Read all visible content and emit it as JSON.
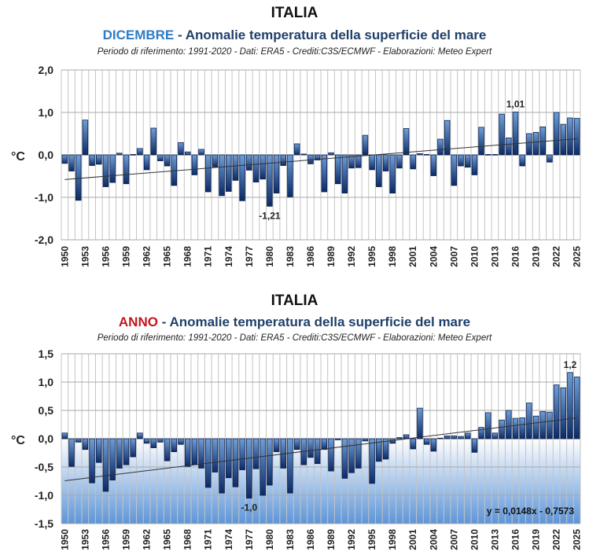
{
  "chart_data": [
    {
      "type": "bar",
      "title": "ITALIA",
      "subtitle_highlight": "DICEMBRE",
      "subtitle_highlight_color": "#2e7cc4",
      "subtitle_rest": " - Anomalie temperatura della superficie del mare",
      "credits": "Periodo di riferimento: 1991-2020 - Dati: ERA5 - Crediti:C3S/ECMWF - Elaborazioni: Meteo Expert",
      "ylabel": "°C",
      "xlabel": "",
      "ylim": [
        -2.0,
        2.0
      ],
      "yticks": [
        2.0,
        1.0,
        0.0,
        -1.0,
        -2.0
      ],
      "ytick_labels": [
        "2,0",
        "1,0",
        "0,0",
        "-1,0",
        "-2,0"
      ],
      "grid": true,
      "background": "white",
      "xtick_labels": [
        "1950",
        "1953",
        "1956",
        "1959",
        "1962",
        "1965",
        "1968",
        "1971",
        "1974",
        "1977",
        "1980",
        "1983",
        "1986",
        "1989",
        "1992",
        "1995",
        "1998",
        "2001",
        "2004",
        "2007",
        "2010",
        "2013",
        "2016",
        "2019",
        "2022",
        "2025"
      ],
      "x": [
        1950,
        1951,
        1952,
        1953,
        1954,
        1955,
        1956,
        1957,
        1958,
        1959,
        1960,
        1961,
        1962,
        1963,
        1964,
        1965,
        1966,
        1967,
        1968,
        1969,
        1970,
        1971,
        1972,
        1973,
        1974,
        1975,
        1976,
        1977,
        1978,
        1979,
        1980,
        1981,
        1982,
        1983,
        1984,
        1985,
        1986,
        1987,
        1988,
        1989,
        1990,
        1991,
        1992,
        1993,
        1994,
        1995,
        1996,
        1997,
        1998,
        1999,
        2000,
        2001,
        2002,
        2003,
        2004,
        2005,
        2006,
        2007,
        2008,
        2009,
        2010,
        2011,
        2012,
        2013,
        2014,
        2015,
        2016,
        2017,
        2018,
        2019,
        2020,
        2021,
        2022,
        2023,
        2024,
        2025
      ],
      "values": [
        -0.2,
        -0.38,
        -1.07,
        0.82,
        -0.25,
        -0.22,
        -0.75,
        -0.65,
        0.04,
        -0.68,
        0.01,
        0.15,
        -0.35,
        0.63,
        -0.14,
        -0.26,
        -0.72,
        0.29,
        0.07,
        -0.47,
        0.13,
        -0.87,
        -0.28,
        -0.96,
        -0.86,
        -0.6,
        -1.08,
        -0.36,
        -0.64,
        -0.57,
        -1.21,
        -0.9,
        -0.25,
        -0.99,
        0.26,
        0.02,
        -0.21,
        -0.12,
        -0.87,
        0.05,
        -0.68,
        -0.9,
        -0.31,
        -0.3,
        0.46,
        -0.35,
        -0.75,
        -0.38,
        -0.9,
        -0.31,
        0.62,
        -0.33,
        0.03,
        0.01,
        -0.49,
        0.37,
        0.81,
        -0.72,
        -0.26,
        -0.29,
        -0.47,
        0.65,
        0.01,
        0.01,
        0.96,
        0.4,
        1.01,
        -0.26,
        0.5,
        0.53,
        0.66,
        -0.17,
        1.0,
        0.72,
        0.87,
        0.86
      ],
      "annotations": [
        {
          "x": 1980,
          "text": "-1,21"
        },
        {
          "x": 2016,
          "text": "1,01"
        }
      ],
      "trendline": {
        "start": [
          1950,
          -0.58
        ],
        "end": [
          2025,
          0.38
        ]
      }
    },
    {
      "type": "bar",
      "title": "ITALIA",
      "subtitle_highlight": "ANNO",
      "subtitle_highlight_color": "#c0161c",
      "subtitle_rest": " - Anomalie temperatura della superficie del mare",
      "credits": "Periodo di riferimento: 1991-2020 - Dati: ERA5 - Crediti:C3S/ECMWF - Elaborazioni: Meteo Expert",
      "ylabel": "°C",
      "xlabel": "",
      "ylim": [
        -1.5,
        1.5
      ],
      "yticks": [
        1.5,
        1.0,
        0.5,
        0.0,
        -0.5,
        -1.0,
        -1.5
      ],
      "ytick_labels": [
        "1,5",
        "1,0",
        "0,5",
        "0,0",
        "-0,5",
        "-1,0",
        "-1,5"
      ],
      "grid": true,
      "background": "blue gradient below zero",
      "xtick_labels": [
        "1950",
        "1953",
        "1956",
        "1959",
        "1962",
        "1965",
        "1968",
        "1971",
        "1974",
        "1977",
        "1980",
        "1983",
        "1986",
        "1989",
        "1992",
        "1995",
        "1998",
        "2001",
        "2004",
        "2007",
        "2010",
        "2013",
        "2016",
        "2019",
        "2022",
        "2025"
      ],
      "x": [
        1950,
        1951,
        1952,
        1953,
        1954,
        1955,
        1956,
        1957,
        1958,
        1959,
        1960,
        1961,
        1962,
        1963,
        1964,
        1965,
        1966,
        1967,
        1968,
        1969,
        1970,
        1971,
        1972,
        1973,
        1974,
        1975,
        1976,
        1977,
        1978,
        1979,
        1980,
        1981,
        1982,
        1983,
        1984,
        1985,
        1986,
        1987,
        1988,
        1989,
        1990,
        1991,
        1992,
        1993,
        1994,
        1995,
        1996,
        1997,
        1998,
        1999,
        2000,
        2001,
        2002,
        2003,
        2004,
        2005,
        2006,
        2007,
        2008,
        2009,
        2010,
        2011,
        2012,
        2013,
        2014,
        2015,
        2016,
        2017,
        2018,
        2019,
        2020,
        2021,
        2022,
        2023,
        2024,
        2025
      ],
      "values": [
        0.1,
        -0.49,
        -0.06,
        -0.19,
        -0.78,
        -0.42,
        -0.93,
        -0.73,
        -0.52,
        -0.46,
        -0.32,
        0.1,
        -0.08,
        -0.16,
        -0.06,
        -0.39,
        -0.23,
        -0.1,
        -0.49,
        -0.46,
        -0.52,
        -0.86,
        -0.59,
        -0.96,
        -0.69,
        -0.85,
        -0.55,
        -1.05,
        -0.53,
        -1.0,
        -0.82,
        -0.23,
        -0.52,
        -0.96,
        -0.19,
        -0.46,
        -0.33,
        -0.44,
        -0.19,
        -0.57,
        -0.02,
        -0.7,
        -0.6,
        -0.52,
        -0.04,
        -0.79,
        -0.4,
        -0.36,
        -0.08,
        0.02,
        0.07,
        -0.18,
        0.54,
        -0.1,
        -0.22,
        0.01,
        0.05,
        0.05,
        0.04,
        0.1,
        -0.24,
        0.2,
        0.46,
        0.1,
        0.33,
        0.5,
        0.36,
        0.37,
        0.63,
        0.4,
        0.48,
        0.47,
        0.95,
        0.9,
        1.17,
        1.09
      ],
      "annotations": [
        {
          "x": 1977,
          "text": "-1,0"
        },
        {
          "x": 2024,
          "text": "1,2"
        }
      ],
      "trendline": {
        "start": [
          1950,
          -0.7425
        ],
        "end": [
          2025,
          0.3675
        ]
      },
      "trend_equation": "y = 0,0148x - 0,7573"
    }
  ]
}
